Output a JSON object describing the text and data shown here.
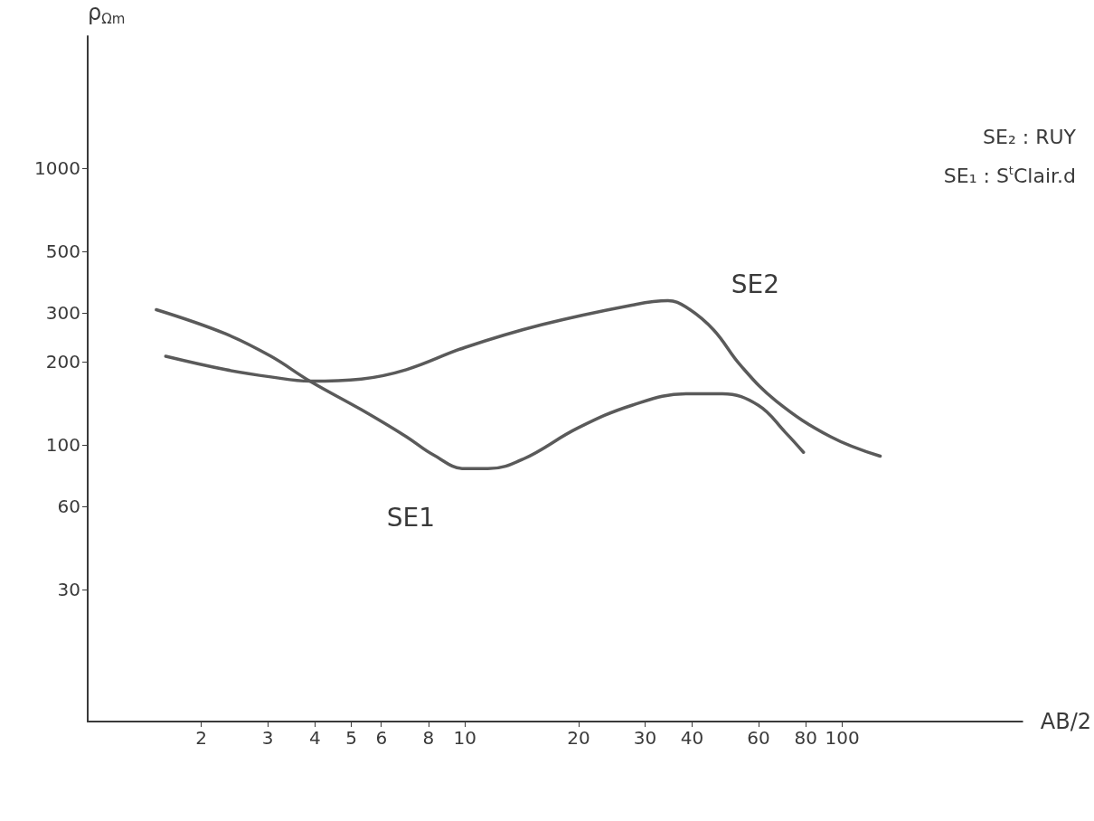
{
  "chart_data": {
    "type": "line",
    "xlabel": "AB/2",
    "ylabel": "ρ$_{Ωm}$",
    "log": "xy",
    "xlim": [
      1,
      300
    ],
    "xticks": [
      2,
      3,
      4,
      5,
      6,
      8,
      10,
      20,
      30,
      40,
      60,
      80,
      100
    ],
    "ylim": [
      10,
      3000
    ],
    "yticks": [
      30,
      60,
      100,
      200,
      300,
      500,
      1000
    ],
    "grid": false,
    "legend": false,
    "marker": "none",
    "line_style": "solid",
    "annotations": [
      "SE₂ : RUY",
      "SE₁ : S$^{t}$Clair.d"
    ],
    "series": [
      {
        "name": "SE1",
        "color": "#5a5a5a",
        "x": [
          1.52,
          2.32,
          3.06,
          3.88,
          5.31,
          6.99,
          8.24,
          10,
          11.5,
          14.3,
          19.9,
          27.7,
          38.5,
          48.1,
          59.9,
          70.6,
          78.9
        ],
        "values": [
          308,
          252,
          209,
          170,
          134,
          107,
          92,
          82,
          82,
          89,
          115,
          139,
          153,
          153,
          139,
          111,
          94
        ]
      },
      {
        "name": "SE2",
        "color": "#5a5a5a",
        "x": [
          1.61,
          2.32,
          3.06,
          3.88,
          5.31,
          6.99,
          10,
          16.0,
          27.7,
          34.5,
          38.5,
          45.5,
          53.7,
          66.8,
          93.1,
          126
        ],
        "values": [
          209,
          187,
          176,
          170,
          173,
          187,
          225,
          272,
          320,
          332,
          315,
          261,
          194,
          144,
          107,
          91
        ]
      }
    ]
  }
}
